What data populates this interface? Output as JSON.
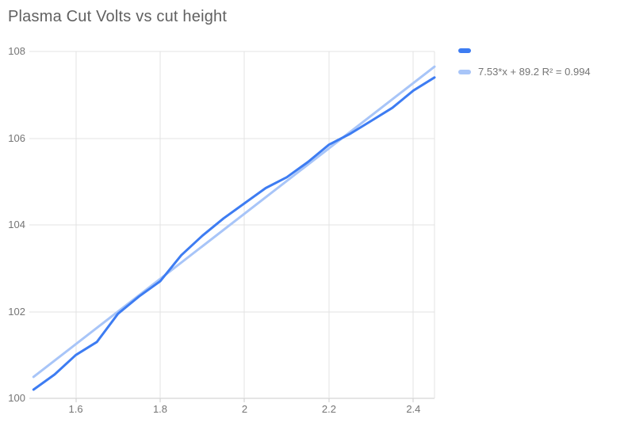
{
  "title": "Plasma Cut Volts vs cut height",
  "legend": {
    "items": [
      {
        "label": ""
      },
      {
        "label": "7.53*x + 89.2 R² = 0.994"
      }
    ]
  },
  "colors": {
    "series": "#3d7cf2",
    "trendline": "#a8c5f8",
    "title_text": "#616161",
    "axis_text": "#757575",
    "gridline": "#e3e3e3",
    "axis_line": "#cbcbcb"
  },
  "chart_data": {
    "type": "line",
    "title": "Plasma Cut Volts vs cut height",
    "xlabel": "",
    "ylabel": "",
    "xlim": [
      1.49,
      2.45
    ],
    "ylim": [
      100,
      108
    ],
    "x_tick_labels": [
      "1.6",
      "1.8",
      "2",
      "2.2",
      "2.4"
    ],
    "x_tick_values": [
      1.6,
      1.8,
      2.0,
      2.2,
      2.4
    ],
    "y_tick_labels": [
      "108",
      "106",
      "104",
      "102",
      "100"
    ],
    "y_tick_values": [
      108,
      106,
      104,
      102,
      100
    ],
    "grid": true,
    "legend_position": "right-top",
    "series": [
      {
        "name": "",
        "kind": "data",
        "color": "#3d7cf2",
        "x": [
          1.5,
          1.55,
          1.6,
          1.65,
          1.7,
          1.75,
          1.8,
          1.85,
          1.9,
          1.95,
          2.0,
          2.05,
          2.1,
          2.15,
          2.2,
          2.25,
          2.3,
          2.35,
          2.4,
          2.45
        ],
        "y": [
          100.2,
          100.55,
          101.0,
          101.3,
          101.95,
          102.35,
          102.7,
          103.3,
          103.75,
          104.15,
          104.5,
          104.85,
          105.1,
          105.45,
          105.85,
          106.1,
          106.4,
          106.7,
          107.1,
          107.4
        ]
      },
      {
        "name": "7.53*x + 89.2 R² = 0.994",
        "kind": "trendline",
        "color": "#a8c5f8",
        "equation": {
          "slope": 7.53,
          "intercept": 89.2,
          "r2": 0.994
        },
        "x_range": [
          1.5,
          2.45
        ]
      }
    ]
  }
}
